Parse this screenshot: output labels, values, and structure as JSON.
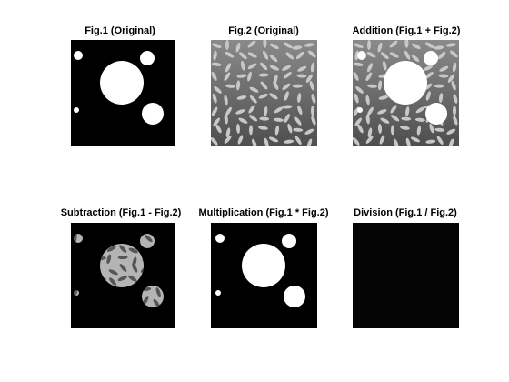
{
  "figure": {
    "background": "#ffffff",
    "panels": [
      {
        "key": "fig1",
        "title": "Fig.1 (Original)",
        "image": "binary-circles"
      },
      {
        "key": "fig2",
        "title": "Fig.2 (Original)",
        "image": "rice-grains"
      },
      {
        "key": "addition",
        "title": "Addition (Fig.1 + Fig.2)",
        "image": "circles-over-rice"
      },
      {
        "key": "subtraction",
        "title": "Subtraction (Fig.1 - Fig.2)",
        "image": "rice-inside-circles"
      },
      {
        "key": "multiplication",
        "title": "Multiplication (Fig.1 * Fig.2)",
        "image": "binary-circles"
      },
      {
        "key": "division",
        "title": "Division (Fig.1 / Fig.2)",
        "image": "near-black"
      }
    ],
    "colors": {
      "circle": "#ffffff",
      "background_black": "#000000",
      "rice_bg": "#6e6e6e",
      "grain": "#c8c8c8",
      "subtraction_fill": "#b4b4b4",
      "subtraction_grain": "#555555",
      "division_bg": "#050505"
    }
  }
}
